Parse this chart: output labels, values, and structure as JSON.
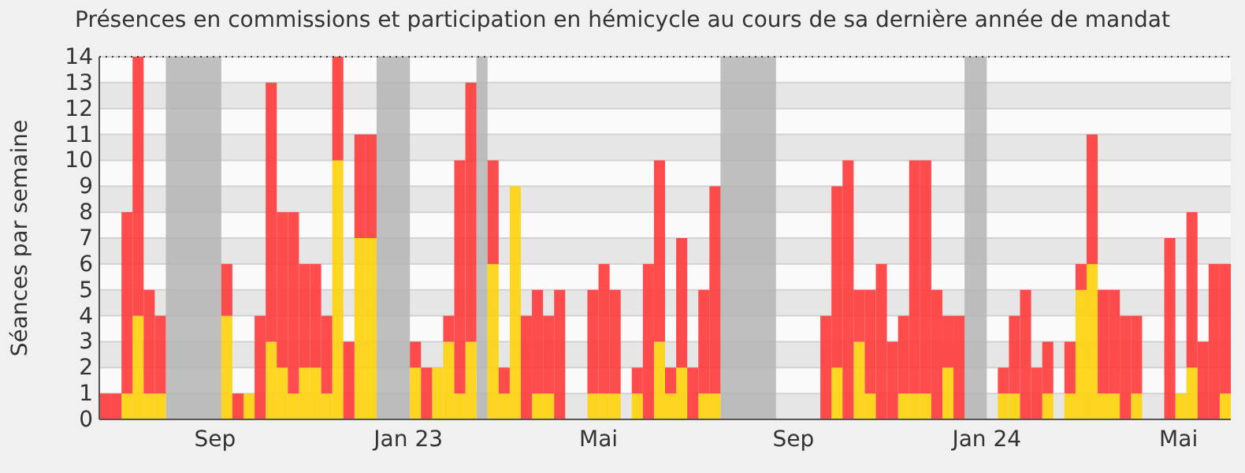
{
  "chart_data": {
    "type": "bar",
    "title": "Présences en commissions et participation en hémicycle au cours de sa dernière année de mandat",
    "ylabel": "Séances par semaine",
    "x": [
      "2022-06-20",
      "2022-06-27",
      "2022-07-04",
      "2022-07-11",
      "2022-07-18",
      "2022-07-25",
      "2022-08-01",
      "2022-08-08",
      "2022-08-15",
      "2022-08-22",
      "2022-08-29",
      "2022-09-05",
      "2022-09-12",
      "2022-09-19",
      "2022-09-26",
      "2022-10-03",
      "2022-10-10",
      "2022-10-17",
      "2022-10-24",
      "2022-10-31",
      "2022-11-07",
      "2022-11-14",
      "2022-11-21",
      "2022-11-28",
      "2022-12-05",
      "2022-12-12",
      "2022-12-19",
      "2022-12-26",
      "2023-01-02",
      "2023-01-09",
      "2023-01-16",
      "2023-01-23",
      "2023-01-30",
      "2023-02-06",
      "2023-02-13",
      "2023-02-20",
      "2023-02-27",
      "2023-03-06",
      "2023-03-13",
      "2023-03-20",
      "2023-03-27",
      "2023-04-03",
      "2023-04-10",
      "2023-04-17",
      "2023-04-24",
      "2023-05-01",
      "2023-05-08",
      "2023-05-15",
      "2023-05-22",
      "2023-05-29",
      "2023-06-05",
      "2023-06-12",
      "2023-06-19",
      "2023-06-26",
      "2023-07-03",
      "2023-07-10",
      "2023-07-17",
      "2023-07-24",
      "2023-07-31",
      "2023-08-07",
      "2023-08-14",
      "2023-08-21",
      "2023-08-28",
      "2023-09-04",
      "2023-09-11",
      "2023-09-18",
      "2023-09-25",
      "2023-10-02",
      "2023-10-09",
      "2023-10-16",
      "2023-10-23",
      "2023-10-30",
      "2023-11-06",
      "2023-11-13",
      "2023-11-20",
      "2023-11-27",
      "2023-12-04",
      "2023-12-11",
      "2023-12-18",
      "2023-12-25",
      "2024-01-01",
      "2024-01-08",
      "2024-01-15",
      "2024-01-22",
      "2024-01-29",
      "2024-02-05",
      "2024-02-12",
      "2024-02-19",
      "2024-02-26",
      "2024-03-04",
      "2024-03-11",
      "2024-03-18",
      "2024-03-25",
      "2024-04-01",
      "2024-04-08",
      "2024-04-15",
      "2024-04-22",
      "2024-04-29",
      "2024-05-06",
      "2024-05-13",
      "2024-05-20",
      "2024-05-27"
    ],
    "xlim": [
      "2022-06-20",
      "2024-06-03"
    ],
    "xticks": [
      {
        "value": "2022-09-01",
        "label": "Sep"
      },
      {
        "value": "2023-01-01",
        "label": "Jan 23"
      },
      {
        "value": "2023-05-01",
        "label": "Mai"
      },
      {
        "value": "2023-09-01",
        "label": "Sep"
      },
      {
        "value": "2024-01-01",
        "label": "Jan 24"
      },
      {
        "value": "2024-05-01",
        "label": "Mai"
      }
    ],
    "stacked": true,
    "series": [
      {
        "color": "#ffd20a",
        "values": [
          0,
          0,
          1,
          4,
          1,
          1,
          0,
          0,
          0,
          0,
          0,
          4,
          0,
          1,
          0,
          3,
          2,
          1,
          2,
          2,
          1,
          10,
          0,
          7,
          7,
          0,
          0,
          0,
          2,
          0,
          2,
          3,
          1,
          3,
          0,
          6,
          1,
          9,
          0,
          1,
          1,
          0,
          0,
          0,
          1,
          1,
          1,
          0,
          1,
          0,
          3,
          1,
          2,
          0,
          1,
          1,
          0,
          0,
          0,
          0,
          0,
          0,
          0,
          0,
          0,
          0,
          2,
          0,
          3,
          1,
          0,
          0,
          1,
          1,
          1,
          0,
          2,
          0,
          0,
          0,
          0,
          1,
          1,
          0,
          0,
          1,
          0,
          1,
          5,
          6,
          1,
          1,
          0,
          1,
          0,
          0,
          0,
          1,
          2,
          0,
          0,
          1
        ]
      },
      {
        "color": "#ff3a3a",
        "values": [
          1,
          1,
          7,
          10,
          4,
          3,
          0,
          0,
          0,
          0,
          0,
          2,
          1,
          0,
          4,
          10,
          6,
          7,
          4,
          4,
          3,
          4,
          3,
          4,
          4,
          0,
          0,
          0,
          1,
          2,
          0,
          1,
          9,
          10,
          0,
          4,
          1,
          0,
          4,
          4,
          3,
          5,
          0,
          0,
          4,
          5,
          4,
          0,
          1,
          6,
          7,
          1,
          5,
          2,
          4,
          8,
          0,
          0,
          0,
          0,
          0,
          0,
          0,
          0,
          0,
          4,
          7,
          10,
          2,
          4,
          6,
          3,
          3,
          9,
          9,
          5,
          2,
          4,
          0,
          0,
          0,
          1,
          3,
          5,
          2,
          2,
          0,
          2,
          1,
          5,
          4,
          4,
          4,
          3,
          0,
          0,
          7,
          0,
          6,
          3,
          6,
          5
        ]
      }
    ],
    "bands": [
      {
        "axis": "x",
        "from": "2022-08-01",
        "to": "2022-09-05",
        "color": "#b4b4b4"
      },
      {
        "axis": "x",
        "from": "2022-12-12",
        "to": "2023-01-02",
        "color": "#b4b4b4"
      },
      {
        "axis": "x",
        "from": "2023-02-13",
        "to": "2023-02-20",
        "color": "#b4b4b4"
      },
      {
        "axis": "x",
        "from": "2023-07-17",
        "to": "2023-08-21",
        "color": "#b4b4b4"
      },
      {
        "axis": "x",
        "from": "2023-12-18",
        "to": "2024-01-01",
        "color": "#b4b4b4"
      }
    ],
    "ylim": [
      0,
      14
    ],
    "yticks": [
      0,
      1,
      2,
      3,
      4,
      5,
      6,
      7,
      8,
      9,
      10,
      11,
      12,
      13,
      14
    ],
    "grid": "y"
  }
}
